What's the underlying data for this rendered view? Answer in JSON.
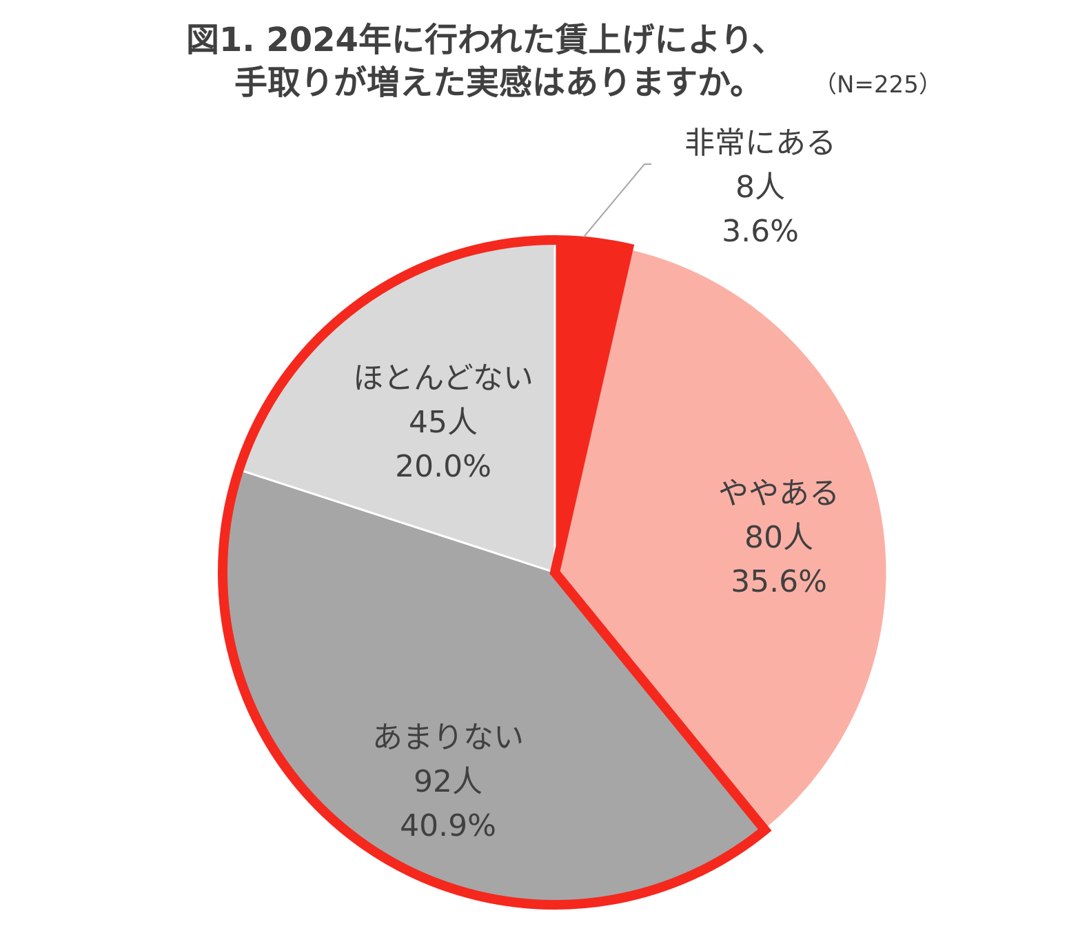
{
  "title": {
    "line1": "図1. 2024年に行われた賃上げにより、",
    "line2": "手取りが増えた実感はありますか。",
    "n_note": "（N=225）"
  },
  "chart_data": {
    "type": "pie",
    "title": "図1. 2024年に行われた賃上げにより、手取りが増えた実感はありますか。",
    "note": "（N=225）",
    "slices": [
      {
        "label": "非常にある",
        "count_label": "8人",
        "percent_label": "3.6%",
        "value": 8,
        "percent": 3.6,
        "color": "#f5281e",
        "highlighted": true
      },
      {
        "label": "ややある",
        "count_label": "80人",
        "percent_label": "35.6%",
        "value": 80,
        "percent": 35.6,
        "color": "#fbb0a6",
        "highlighted": false
      },
      {
        "label": "あまりない",
        "count_label": "92人",
        "percent_label": "40.9%",
        "value": 92,
        "percent": 40.9,
        "color": "#a6a6a6",
        "highlighted": true
      },
      {
        "label": "ほとんどない",
        "count_label": "45人",
        "percent_label": "20.0%",
        "value": 45,
        "percent": 20.0,
        "color": "#d9d9d9",
        "highlighted": true
      }
    ],
    "highlight_color": "#f5281e",
    "start_angle": "12 o'clock, clockwise"
  }
}
